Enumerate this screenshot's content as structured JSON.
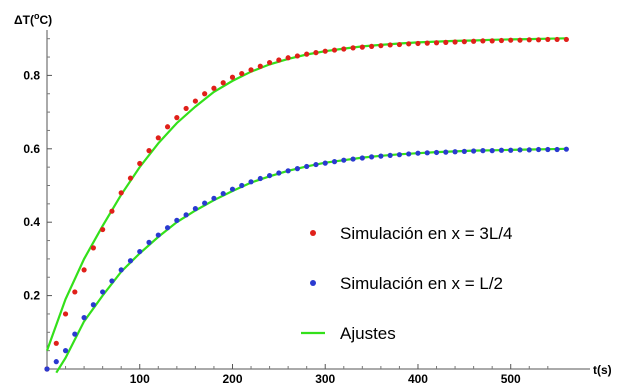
{
  "chart_data": {
    "type": "scatter",
    "ylabel_main": "ΔT(",
    "ylabel_sup": "o",
    "ylabel_end": "C)",
    "xlabel": "t(s)",
    "xlim": [
      0,
      565
    ],
    "ylim": [
      0,
      1.0
    ],
    "xticks": [
      100,
      200,
      300,
      400,
      500
    ],
    "xtick_labels": [
      "100",
      "200",
      "300",
      "400",
      "500"
    ],
    "yticks": [
      0.2,
      0.4,
      0.6,
      0.8
    ],
    "ytick_labels": [
      "0.2",
      "0.4",
      "0.6",
      "0.8"
    ],
    "grid": false,
    "legend_position": "right",
    "series": [
      {
        "name": "Simulación en x = 3L/4",
        "color": "#e0201a",
        "kind": "points",
        "x": [
          0,
          10,
          20,
          30,
          40,
          50,
          60,
          70,
          80,
          90,
          100,
          110,
          120,
          130,
          140,
          150,
          160,
          170,
          180,
          190,
          200,
          210,
          220,
          230,
          240,
          250,
          260,
          270,
          280,
          290,
          300,
          310,
          320,
          330,
          340,
          350,
          360,
          370,
          380,
          390,
          400,
          410,
          420,
          430,
          440,
          450,
          460,
          470,
          480,
          490,
          500,
          510,
          520,
          530,
          540,
          550,
          560
        ],
        "y": [
          0.0,
          0.07,
          0.15,
          0.21,
          0.27,
          0.33,
          0.38,
          0.43,
          0.48,
          0.52,
          0.56,
          0.595,
          0.63,
          0.66,
          0.685,
          0.71,
          0.73,
          0.75,
          0.765,
          0.78,
          0.795,
          0.805,
          0.815,
          0.825,
          0.835,
          0.842,
          0.848,
          0.853,
          0.858,
          0.862,
          0.866,
          0.869,
          0.872,
          0.875,
          0.877,
          0.879,
          0.881,
          0.883,
          0.884,
          0.886,
          0.887,
          0.888,
          0.889,
          0.89,
          0.891,
          0.892,
          0.893,
          0.894,
          0.894,
          0.895,
          0.896,
          0.896,
          0.897,
          0.897,
          0.898,
          0.898,
          0.898
        ]
      },
      {
        "name": "Simulación en x = L/2",
        "color": "#2a3ad0",
        "kind": "points",
        "x": [
          0,
          10,
          20,
          30,
          40,
          50,
          60,
          70,
          80,
          90,
          100,
          110,
          120,
          130,
          140,
          150,
          160,
          170,
          180,
          190,
          200,
          210,
          220,
          230,
          240,
          250,
          260,
          270,
          280,
          290,
          300,
          310,
          320,
          330,
          340,
          350,
          360,
          370,
          380,
          390,
          400,
          410,
          420,
          430,
          440,
          450,
          460,
          470,
          480,
          490,
          500,
          510,
          520,
          530,
          540,
          550,
          560
        ],
        "y": [
          0.0,
          0.02,
          0.05,
          0.095,
          0.14,
          0.175,
          0.21,
          0.24,
          0.27,
          0.295,
          0.32,
          0.345,
          0.365,
          0.385,
          0.405,
          0.42,
          0.437,
          0.452,
          0.465,
          0.478,
          0.49,
          0.5,
          0.51,
          0.519,
          0.527,
          0.534,
          0.54,
          0.546,
          0.552,
          0.557,
          0.561,
          0.565,
          0.569,
          0.572,
          0.575,
          0.578,
          0.58,
          0.582,
          0.584,
          0.586,
          0.588,
          0.589,
          0.59,
          0.591,
          0.592,
          0.593,
          0.594,
          0.595,
          0.595,
          0.596,
          0.596,
          0.597,
          0.597,
          0.598,
          0.598,
          0.598,
          0.599
        ]
      },
      {
        "name": "Ajustes",
        "color": "#33e01a",
        "kind": "line",
        "curves": [
          {
            "x": [
              0,
              20,
              40,
              60,
              80,
              100,
              120,
              140,
              160,
              180,
              200,
              220,
              240,
              260,
              280,
              300,
              320,
              340,
              360,
              380,
              400,
              420,
              440,
              460,
              480,
              500,
              520,
              540,
              560
            ],
            "y": [
              0.05,
              0.19,
              0.3,
              0.39,
              0.475,
              0.55,
              0.615,
              0.67,
              0.715,
              0.755,
              0.785,
              0.81,
              0.83,
              0.845,
              0.857,
              0.866,
              0.873,
              0.879,
              0.883,
              0.887,
              0.89,
              0.892,
              0.894,
              0.895,
              0.897,
              0.898,
              0.899,
              0.9,
              0.901
            ]
          },
          {
            "x": [
              10,
              20,
              40,
              60,
              80,
              100,
              120,
              140,
              160,
              180,
              200,
              220,
              240,
              260,
              280,
              300,
              320,
              340,
              360,
              380,
              400,
              420,
              440,
              460,
              480,
              500,
              520,
              540,
              560
            ],
            "y": [
              -0.01,
              0.03,
              0.13,
              0.2,
              0.265,
              0.315,
              0.36,
              0.4,
              0.432,
              0.46,
              0.485,
              0.508,
              0.525,
              0.54,
              0.552,
              0.562,
              0.569,
              0.576,
              0.581,
              0.585,
              0.588,
              0.591,
              0.593,
              0.595,
              0.596,
              0.597,
              0.598,
              0.599,
              0.6
            ]
          }
        ]
      }
    ]
  }
}
